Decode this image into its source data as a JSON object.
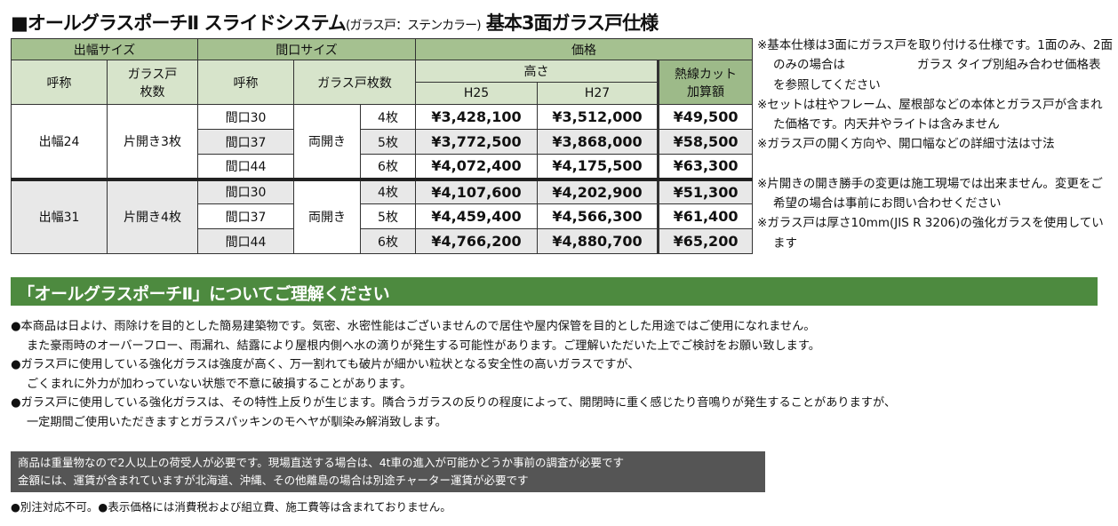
{
  "title": {
    "main": "■オールグラスポーチⅡ スライドシステム",
    "sub": "(ガラス戸：ステンカラー)",
    "suffix": " 基本3面ガラス戸仕様"
  },
  "table": {
    "headers": {
      "depth": "出幅サイズ",
      "frontage": "間口サイズ",
      "price": "価格",
      "name": "呼称",
      "glass_count": "ガラス戸枚数",
      "glass_count_2line": [
        "ガラス戸",
        "枚数"
      ],
      "height": "高さ",
      "h25": "H25",
      "h27": "H27",
      "heat_cut": [
        "熱線カット",
        "加算額"
      ]
    },
    "groups": [
      {
        "depth": "出幅24",
        "glass": "片開き3枚",
        "opening": "両開き",
        "rows": [
          {
            "frontage": "間口30",
            "count": "4枚",
            "h25": "¥3,428,100",
            "h27": "¥3,512,000",
            "heat": "¥49,500"
          },
          {
            "frontage": "間口37",
            "count": "5枚",
            "h25": "¥3,772,500",
            "h27": "¥3,868,000",
            "heat": "¥58,500"
          },
          {
            "frontage": "間口44",
            "count": "6枚",
            "h25": "¥4,072,400",
            "h27": "¥4,175,500",
            "heat": "¥63,300"
          }
        ]
      },
      {
        "depth": "出幅31",
        "glass": "片開き4枚",
        "opening": "両開き",
        "rows": [
          {
            "frontage": "間口30",
            "count": "4枚",
            "h25": "¥4,107,600",
            "h27": "¥4,202,900",
            "heat": "¥51,300"
          },
          {
            "frontage": "間口37",
            "count": "5枚",
            "h25": "¥4,459,400",
            "h27": "¥4,566,300",
            "heat": "¥61,400"
          },
          {
            "frontage": "間口44",
            "count": "6枚",
            "h25": "¥4,766,200",
            "h27": "¥4,880,700",
            "heat": "¥65,200"
          }
        ]
      }
    ]
  },
  "notes": [
    "※基本仕様は3面にガラス戸を取り付ける仕様です。1面のみ、2面のみの場合は　　　　　　ガラス タイプ別組み合わせ価格表を参照してください",
    "※セットは柱やフレーム、屋根部などの本体とガラス戸が含まれた価格です。内天井やライトは含みません",
    "※ガラス戸の開く方向や、開口幅などの詳細寸法は寸法",
    "※片開きの開き勝手の変更は施工現場では出来ません。変更をご希望の場合は事前にお問い合わせください",
    "※ガラス戸は厚さ10mm(JIS R 3206)の強化ガラスを使用しています"
  ],
  "banner": "「オールグラスポーチⅡ」についてご理解ください",
  "body": [
    "●本商品は日よけ、雨除けを目的とした簡易建築物です。気密、水密性能はございませんので居住や屋内保管を目的とした用途ではご使用になれません。",
    "また豪雨時のオーバーフロー、雨漏れ、結露により屋根内側へ水の滴りが発生する可能性があります。ご理解いただいた上でご検討をお願い致します。",
    "●ガラス戸に使用している強化ガラスは強度が高く、万一割れても破片が細かい粒状となる安全性の高いガラスですが、",
    "ごくまれに外力が加わっていない状態で不意に破損することがあります。",
    "●ガラス戸に使用している強化ガラスは、その特性上反りが生じます。隣合うガラスの反りの程度によって、開閉時に重く感じたり音鳴りが発生することがありますが、",
    "一定期間ご使用いただきますとガラスパッキンのモヘヤが馴染み解消致します。"
  ],
  "shipping": [
    "商品は重量物なので2人以上の荷受人が必要です。現場直送する場合は、4t車の進入が可能かどうか事前の調査が必要です",
    "金額には、運賃が含まれていますが北海道、沖縄、その他離島の場合は別途チャーター運賃が必要です"
  ],
  "footer": "●別注対応不可。●表示価格には消費税および組立費、施工費等は含まれておりません。",
  "colors": {
    "header_green": "#a5c190",
    "header_light": "#d7e4cb",
    "banner_green": "#4d8a3f",
    "shipping_box": "#555555",
    "row_shade": "#e8e8e8"
  }
}
